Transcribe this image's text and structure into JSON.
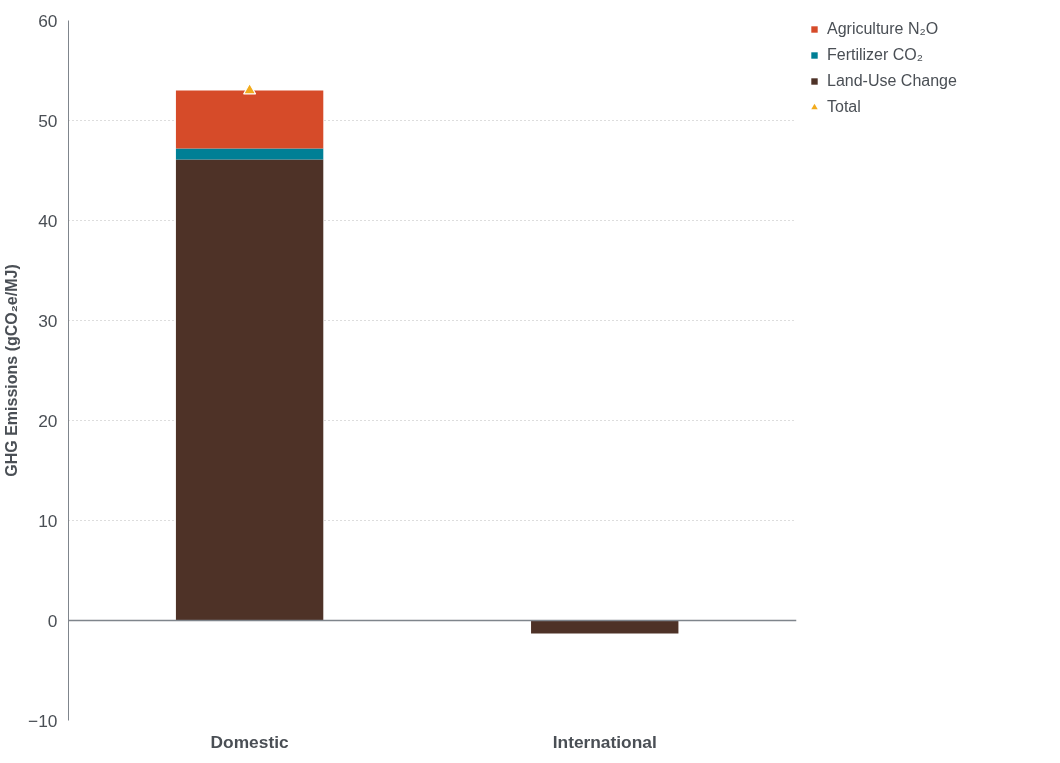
{
  "chart_data": {
    "type": "bar",
    "stacked": true,
    "ylabel": "GHG Emissions (gCO₂e/MJ)",
    "categories": [
      "Domestic",
      "International"
    ],
    "series": [
      {
        "name": "Land-Use Change",
        "color": "#4e3227",
        "values": [
          46.1,
          -1.3
        ]
      },
      {
        "name": "Fertilizer CO₂",
        "color": "#007f95",
        "values": [
          1.1,
          0
        ]
      },
      {
        "name": "Agriculture N₂O",
        "color": "#d64b29",
        "values": [
          5.8,
          0
        ]
      },
      {
        "name": "Total",
        "type": "scatter",
        "color": "#f2ab1c",
        "marker": "triangle",
        "x": [
          "Domestic",
          "International"
        ],
        "values": [
          53.0,
          null
        ]
      }
    ],
    "ylim": [
      -10,
      60
    ],
    "yticks": [
      -10,
      0,
      10,
      20,
      30,
      40,
      50,
      60
    ],
    "grid": "y",
    "legend": "top right"
  }
}
